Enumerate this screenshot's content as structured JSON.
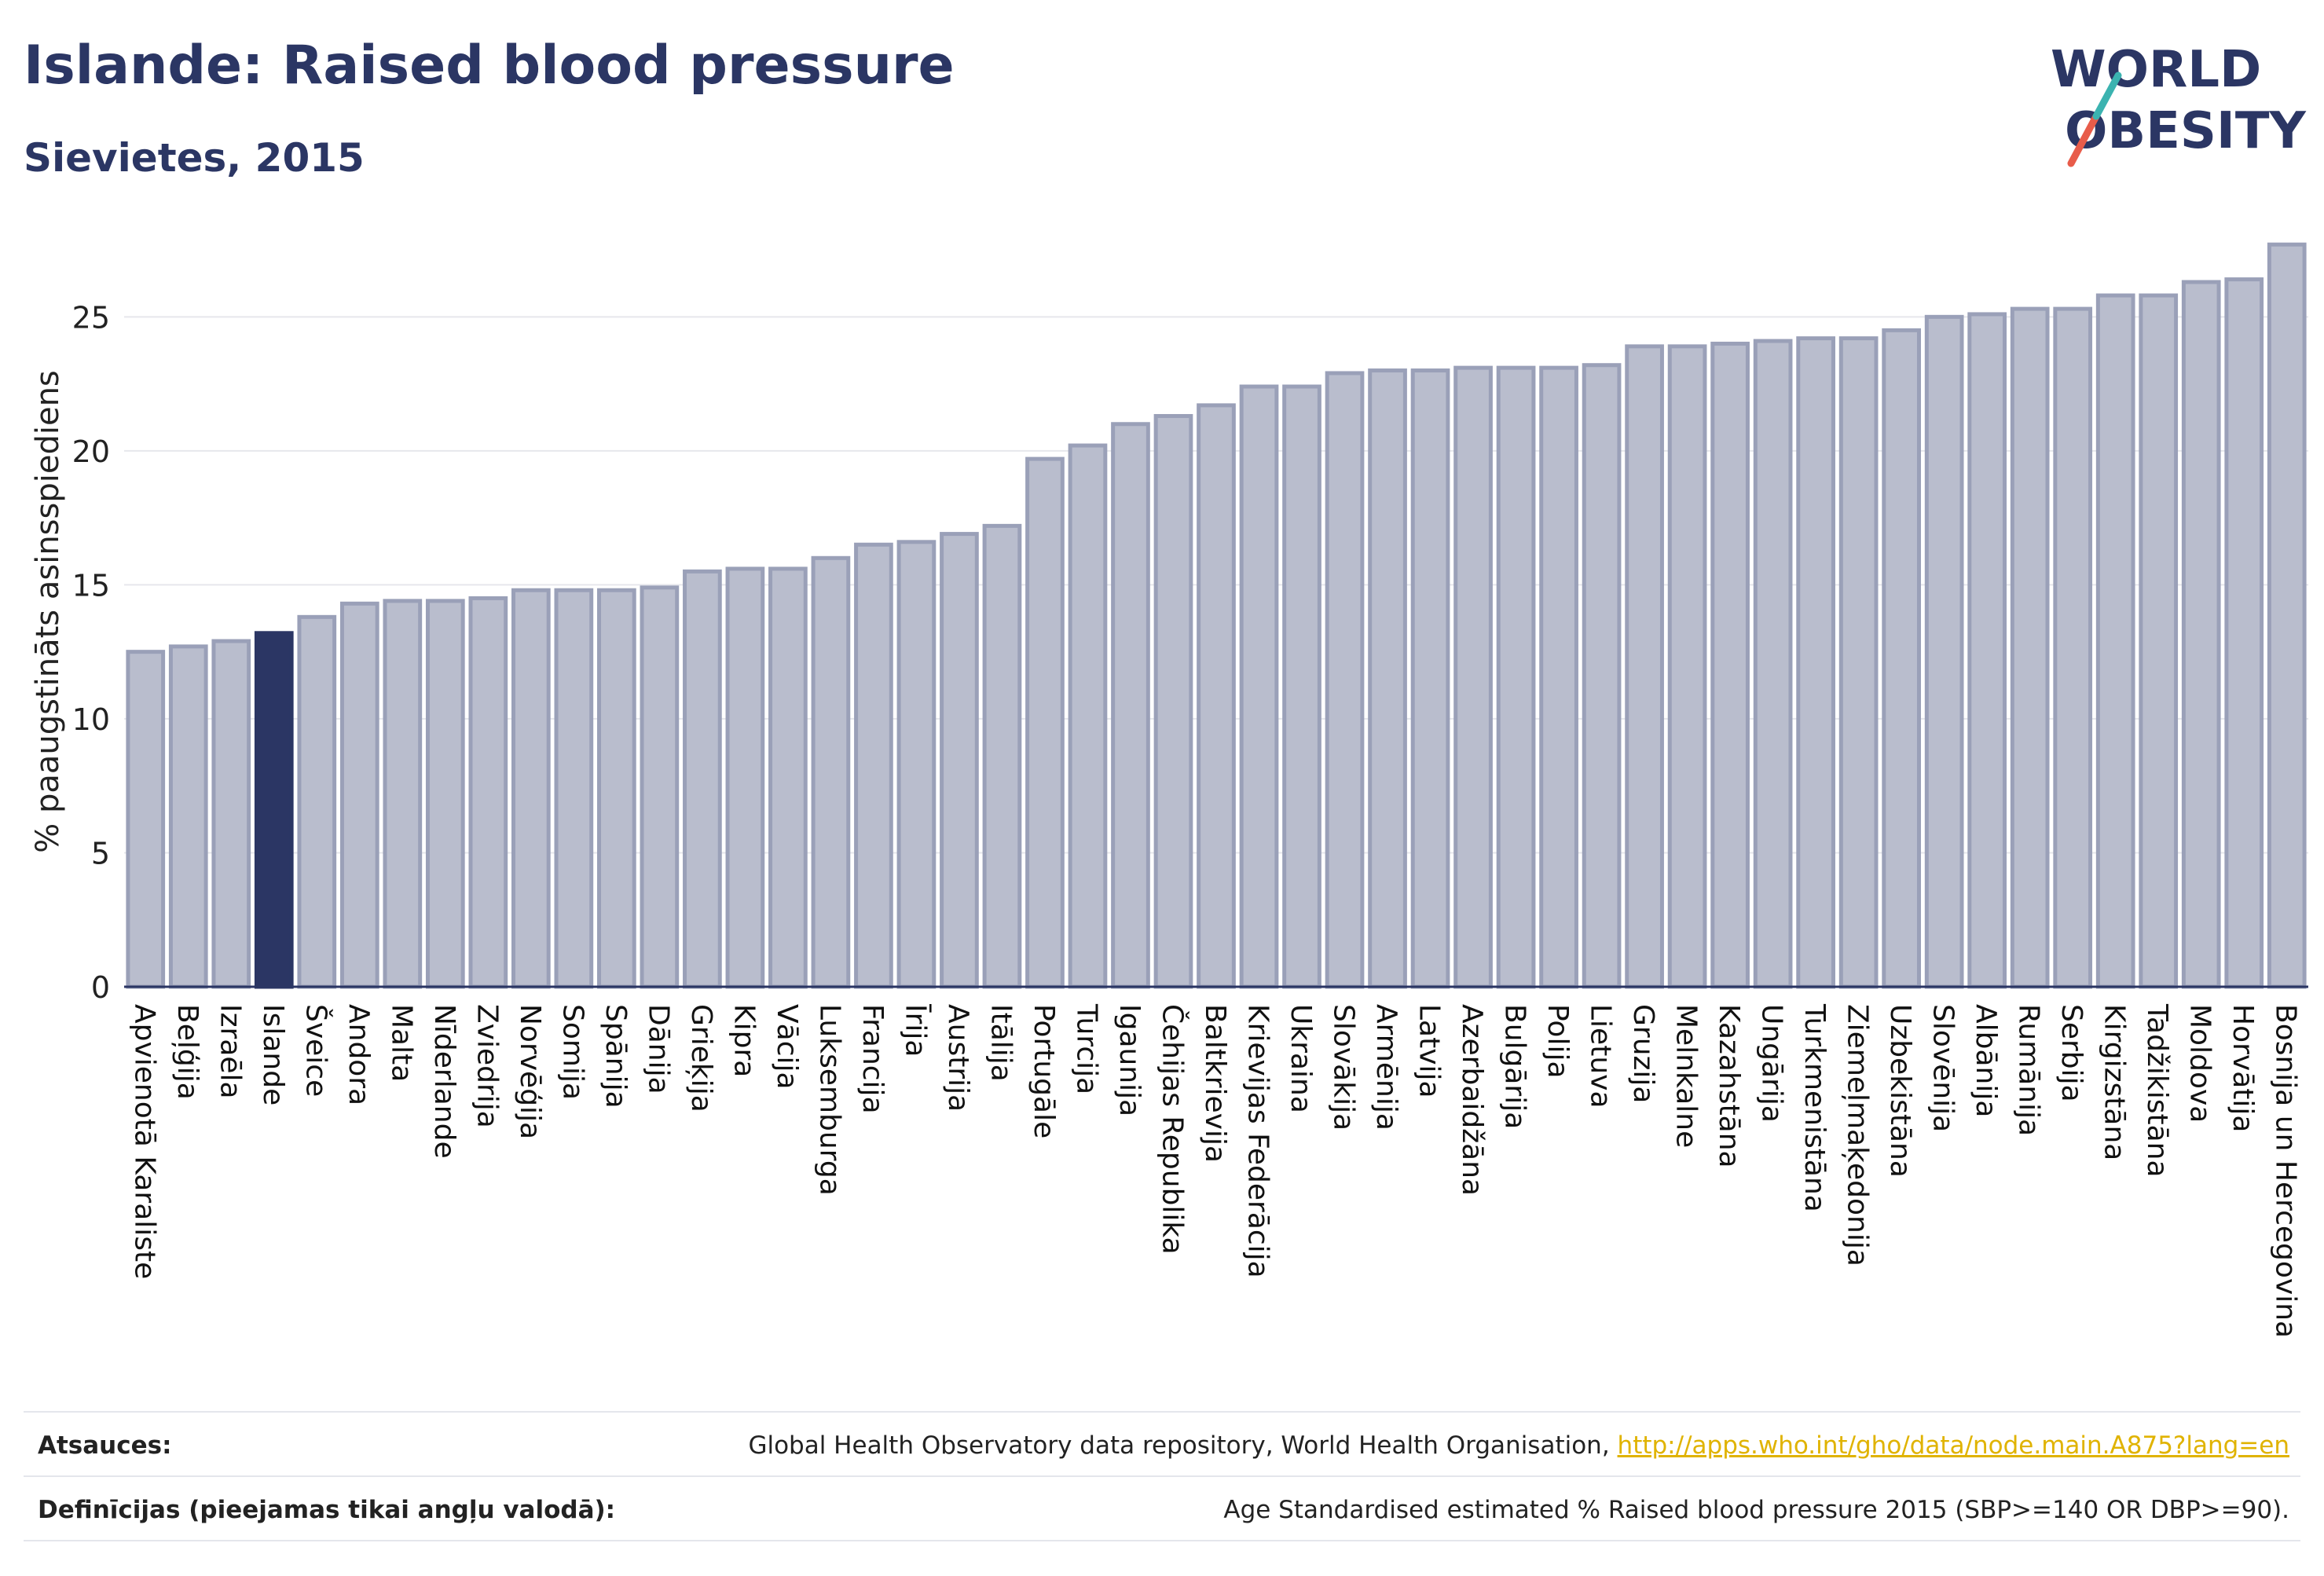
{
  "header": {
    "title": "Islande: Raised blood pressure",
    "subtitle": "Sievietes, 2015"
  },
  "logo": {
    "line1": "WORLD",
    "line2": "OBESITY"
  },
  "colors": {
    "highlight": "#2b3664",
    "bar_fill": "#b9bdcd",
    "bar_stroke": "#9aa0b8",
    "grid": "#e6e7ec"
  },
  "chart_data": {
    "type": "bar",
    "ylabel": "% paaugstināts asinsspiediens",
    "ylim": [
      0,
      28
    ],
    "yticks": [
      0,
      5,
      10,
      15,
      20,
      25
    ],
    "highlight": "Islande",
    "grid": true,
    "categories": [
      "Apvienotā Karaliste",
      "Beļģija",
      "Izraēla",
      "Islande",
      "Šveice",
      "Andora",
      "Malta",
      "Nīderlande",
      "Zviedrija",
      "Norvēģija",
      "Somija",
      "Spānija",
      "Dānija",
      "Grieķija",
      "Kipra",
      "Vācija",
      "Luksemburga",
      "Francija",
      "Īrija",
      "Austrija",
      "Itālija",
      "Portugāle",
      "Turcija",
      "Igaunija",
      "Čehijas Republika",
      "Baltkrievija",
      "Krievijas Federācija",
      "Ukraina",
      "Slovākija",
      "Armēnija",
      "Latvija",
      "Azerbaidžāna",
      "Bulgārija",
      "Polija",
      "Lietuva",
      "Gruzija",
      "Melnkalne",
      "Kazahstāna",
      "Ungārija",
      "Turkmenistāna",
      "Ziemeļmaķedonija",
      "Uzbekistāna",
      "Slovēnija",
      "Albānija",
      "Rumānija",
      "Serbija",
      "Kirgizstāna",
      "Tadžikistāna",
      "Moldova",
      "Horvātija",
      "Bosnija un Hercegovina"
    ],
    "values": [
      12.5,
      12.7,
      12.9,
      13.2,
      13.8,
      14.3,
      14.4,
      14.4,
      14.5,
      14.8,
      14.8,
      14.8,
      14.9,
      15.5,
      15.6,
      15.6,
      16.0,
      16.5,
      16.6,
      16.9,
      17.2,
      19.7,
      20.2,
      21.0,
      21.3,
      21.7,
      22.4,
      22.4,
      22.9,
      23.0,
      23.0,
      23.1,
      23.1,
      23.1,
      23.2,
      23.9,
      23.9,
      24.0,
      24.1,
      24.2,
      24.2,
      24.5,
      25.0,
      25.1,
      25.3,
      25.3,
      25.8,
      25.8,
      26.3,
      26.4,
      27.7
    ]
  },
  "footer": {
    "sources_label": "Atsauces:",
    "sources_text": "Global Health Observatory data repository, World Health Organisation, ",
    "sources_link": "http://apps.who.int/gho/data/node.main.A875?lang=en",
    "definitions_label": "Definīcijas (pieejamas tikai angļu valodā):",
    "definitions_text": "Age Standardised estimated % Raised blood pressure 2015 (SBP>=140 OR DBP>=90)."
  }
}
